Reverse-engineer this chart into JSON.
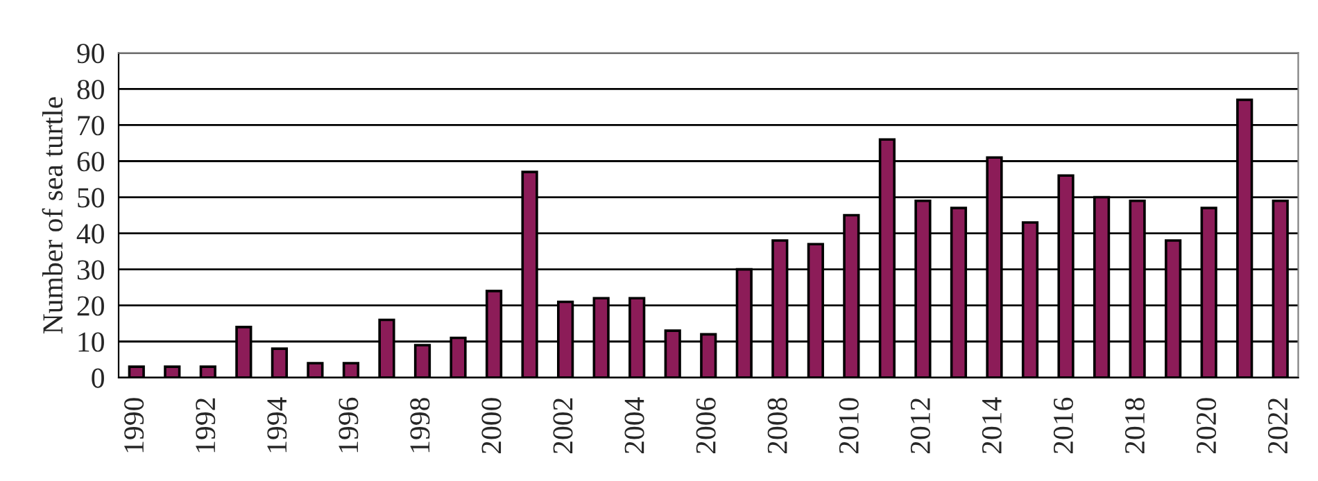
{
  "chart_data": {
    "type": "bar",
    "ylabel": "Number of sea turtle",
    "categories": [
      "1990",
      null,
      "1992",
      null,
      "1994",
      null,
      "1996",
      null,
      "1998",
      null,
      "2000",
      null,
      "2002",
      null,
      "2004",
      null,
      "2006",
      null,
      "2008",
      null,
      "2010",
      null,
      "2012",
      null,
      "2014",
      null,
      "2016",
      null,
      "2018",
      null,
      "2020",
      null,
      "2022"
    ],
    "values": [
      3,
      3,
      3,
      14,
      8,
      4,
      4,
      16,
      9,
      11,
      24,
      57,
      21,
      22,
      22,
      13,
      12,
      30,
      38,
      37,
      45,
      66,
      49,
      47,
      61,
      43,
      56,
      50,
      49,
      38,
      47,
      77,
      49
    ],
    "color": "#8c1c58",
    "ylim": [
      0,
      90
    ],
    "yticks": [
      0,
      10,
      20,
      30,
      40,
      50,
      60,
      70,
      80,
      90
    ],
    "grid": "y",
    "legend": false
  }
}
